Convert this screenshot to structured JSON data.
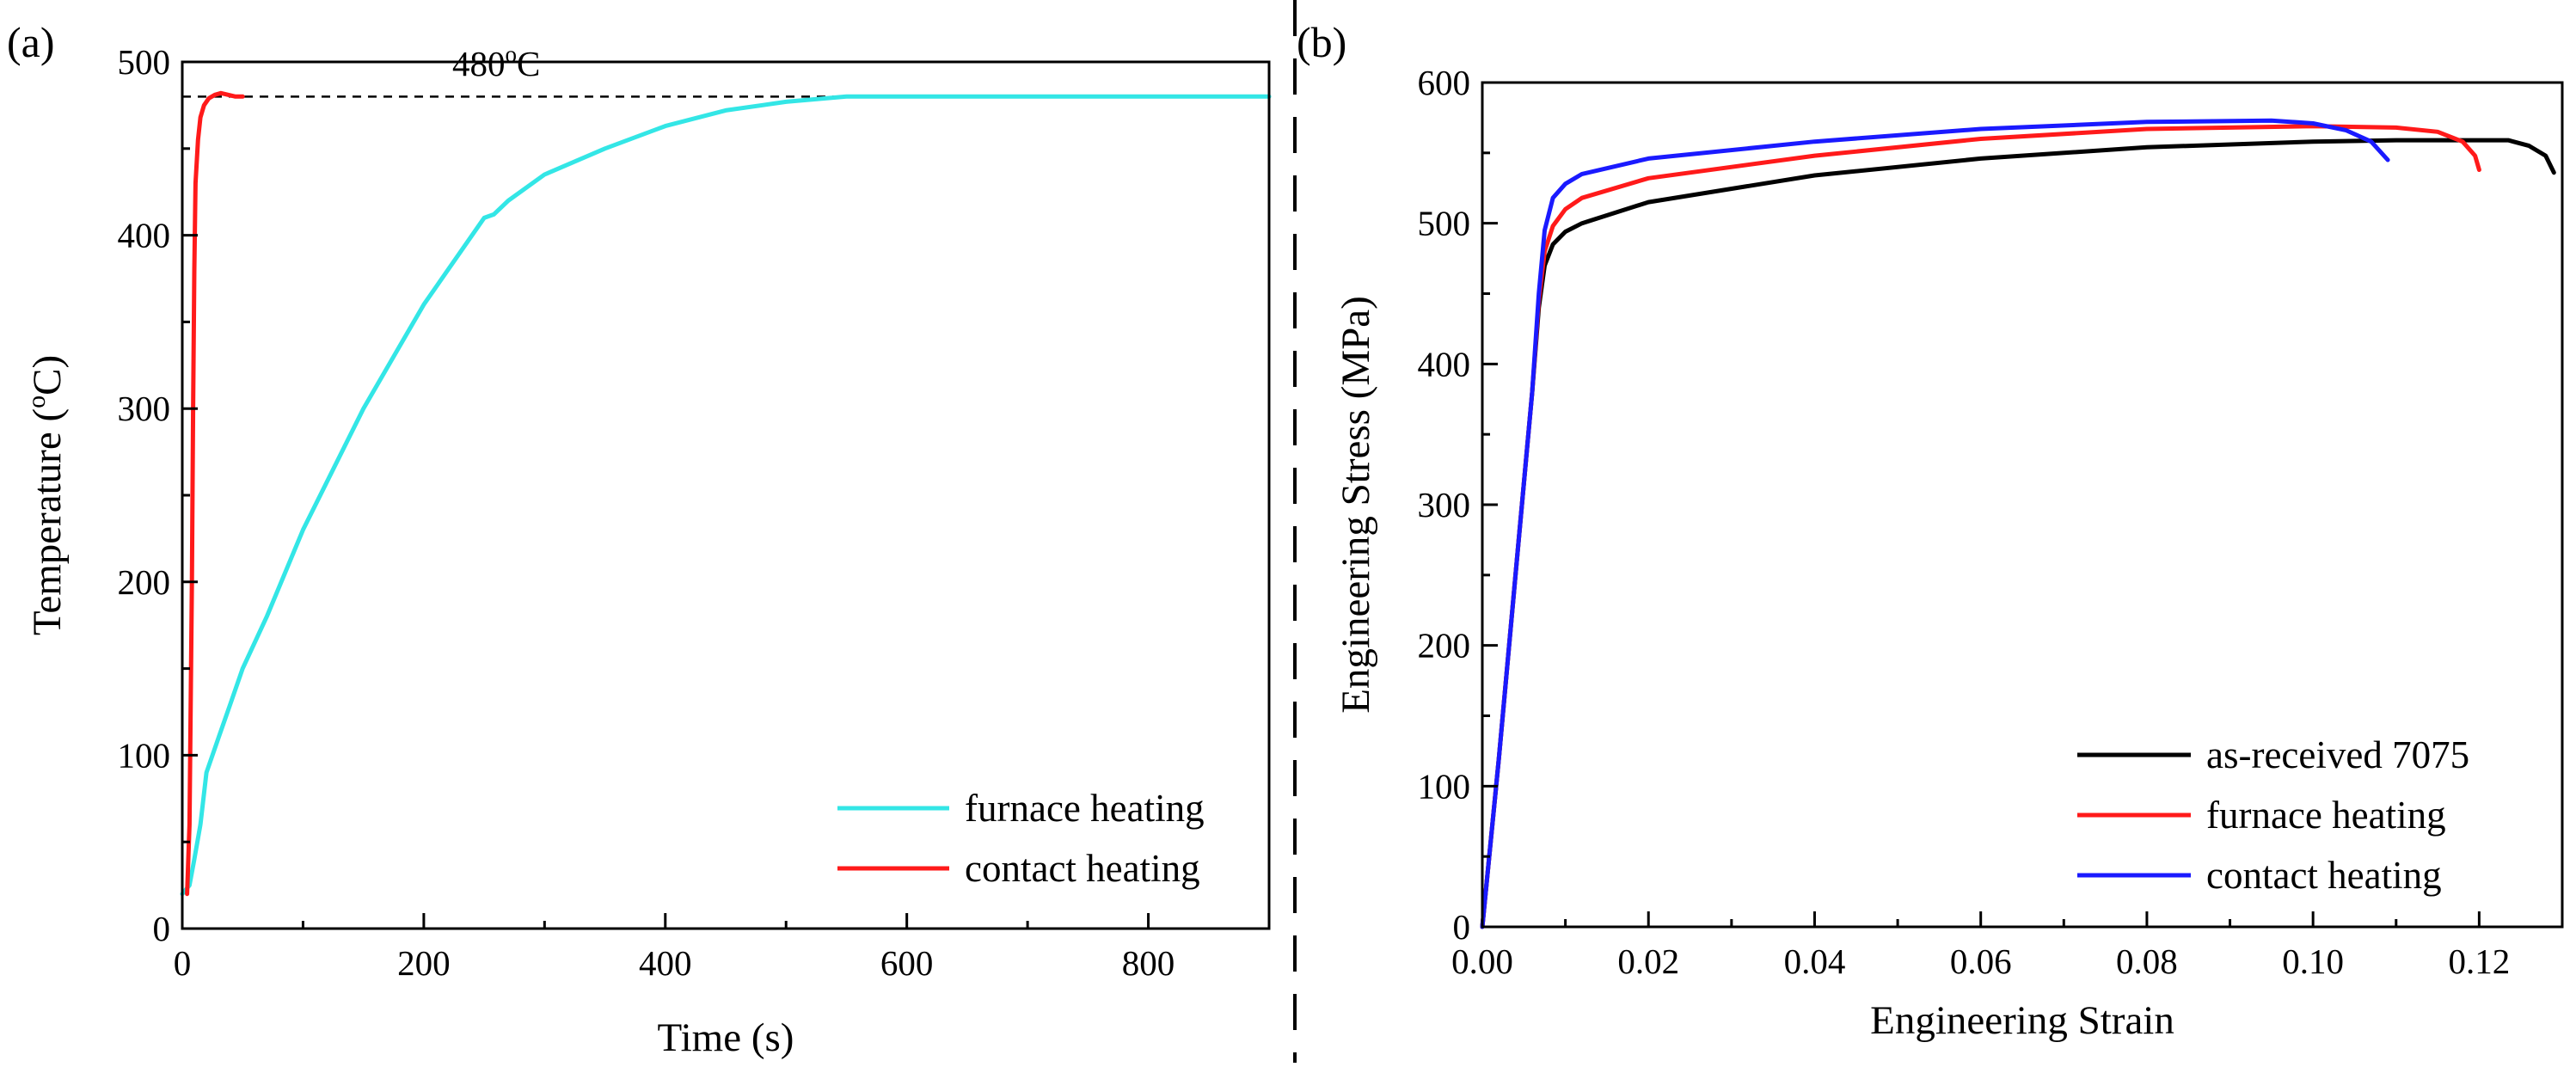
{
  "chart_data": [
    {
      "panel": "(a)",
      "type": "line",
      "title": "",
      "xlabel": "Time (s)",
      "ylabel_prefix": "Temperature (",
      "ylabel_sup": "o",
      "ylabel_suffix": "C)",
      "xlim": [
        0,
        900
      ],
      "ylim": [
        0,
        500
      ],
      "xticks": [
        0,
        200,
        400,
        600,
        800
      ],
      "yticks": [
        0,
        100,
        200,
        300,
        400,
        500
      ],
      "xtick_labels": [
        "0",
        "200",
        "400",
        "600",
        "800"
      ],
      "ytick_labels": [
        "0",
        "100",
        "200",
        "300",
        "400",
        "500"
      ],
      "reference_line": {
        "y": 480,
        "label_prefix": "480",
        "label_sup": "o",
        "label_suffix": "C",
        "style": "dashed",
        "x_range": [
          0,
          900
        ]
      },
      "legend_position": "bottom-right",
      "series": [
        {
          "name": "furnace heating",
          "color": "#33e6e6",
          "points": [
            [
              0,
              20
            ],
            [
              6,
              25
            ],
            [
              10,
              40
            ],
            [
              15,
              60
            ],
            [
              20,
              90
            ],
            [
              30,
              110
            ],
            [
              40,
              130
            ],
            [
              50,
              150
            ],
            [
              70,
              180
            ],
            [
              100,
              230
            ],
            [
              150,
              300
            ],
            [
              200,
              360
            ],
            [
              250,
              410
            ],
            [
              258,
              412
            ],
            [
              270,
              420
            ],
            [
              300,
              435
            ],
            [
              350,
              450
            ],
            [
              400,
              463
            ],
            [
              450,
              472
            ],
            [
              500,
              477
            ],
            [
              550,
              480
            ],
            [
              600,
              480
            ],
            [
              700,
              480
            ],
            [
              800,
              480
            ],
            [
              900,
              480
            ]
          ]
        },
        {
          "name": "contact heating",
          "color": "#ff1a1a",
          "points": [
            [
              4,
              20
            ],
            [
              6,
              60
            ],
            [
              8,
              200
            ],
            [
              9,
              300
            ],
            [
              10,
              380
            ],
            [
              11,
              430
            ],
            [
              13,
              455
            ],
            [
              15,
              468
            ],
            [
              18,
              475
            ],
            [
              22,
              479
            ],
            [
              27,
              481
            ],
            [
              32,
              482
            ],
            [
              38,
              481
            ],
            [
              44,
              480
            ],
            [
              50,
              480
            ]
          ]
        }
      ]
    },
    {
      "panel": "(b)",
      "type": "line",
      "title": "",
      "xlabel": "Engineering Strain",
      "ylabel": "Engineering Stress (MPa)",
      "xlim": [
        0,
        0.13
      ],
      "ylim": [
        0,
        600
      ],
      "xticks": [
        0,
        0.02,
        0.04,
        0.06,
        0.08,
        0.1,
        0.12
      ],
      "yticks": [
        0,
        100,
        200,
        300,
        400,
        500,
        600
      ],
      "xtick_labels": [
        "0.00",
        "0.02",
        "0.04",
        "0.06",
        "0.08",
        "0.10",
        "0.12"
      ],
      "ytick_labels": [
        "0",
        "100",
        "200",
        "300",
        "400",
        "500",
        "600"
      ],
      "legend_position": "bottom-right",
      "series": [
        {
          "name": "as-received 7075",
          "color": "#000000",
          "points": [
            [
              0,
              0
            ],
            [
              0.002,
              120
            ],
            [
              0.004,
              250
            ],
            [
              0.006,
              380
            ],
            [
              0.0068,
              440
            ],
            [
              0.0075,
              470
            ],
            [
              0.0085,
              485
            ],
            [
              0.01,
              494
            ],
            [
              0.012,
              500
            ],
            [
              0.02,
              515
            ],
            [
              0.04,
              534
            ],
            [
              0.06,
              546
            ],
            [
              0.08,
              554
            ],
            [
              0.1,
              558
            ],
            [
              0.11,
              559
            ],
            [
              0.12,
              559
            ],
            [
              0.1235,
              559
            ],
            [
              0.126,
              555
            ],
            [
              0.128,
              548
            ],
            [
              0.129,
              536
            ]
          ]
        },
        {
          "name": "furnace heating",
          "color": "#ff1a1a",
          "points": [
            [
              0,
              0
            ],
            [
              0.002,
              120
            ],
            [
              0.004,
              250
            ],
            [
              0.006,
              380
            ],
            [
              0.0068,
              445
            ],
            [
              0.0075,
              480
            ],
            [
              0.0085,
              498
            ],
            [
              0.01,
              510
            ],
            [
              0.012,
              518
            ],
            [
              0.02,
              532
            ],
            [
              0.04,
              548
            ],
            [
              0.06,
              560
            ],
            [
              0.08,
              567
            ],
            [
              0.1,
              569
            ],
            [
              0.11,
              568
            ],
            [
              0.115,
              565
            ],
            [
              0.118,
              558
            ],
            [
              0.1195,
              548
            ],
            [
              0.12,
              538
            ]
          ]
        },
        {
          "name": "contact heating",
          "color": "#1a1aff",
          "points": [
            [
              0,
              0
            ],
            [
              0.002,
              120
            ],
            [
              0.004,
              250
            ],
            [
              0.006,
              380
            ],
            [
              0.0068,
              450
            ],
            [
              0.0075,
              495
            ],
            [
              0.0085,
              518
            ],
            [
              0.01,
              528
            ],
            [
              0.012,
              535
            ],
            [
              0.02,
              546
            ],
            [
              0.04,
              558
            ],
            [
              0.06,
              567
            ],
            [
              0.08,
              572
            ],
            [
              0.095,
              573
            ],
            [
              0.1,
              571
            ],
            [
              0.104,
              566
            ],
            [
              0.107,
              558
            ],
            [
              0.109,
              545
            ]
          ]
        }
      ]
    }
  ]
}
